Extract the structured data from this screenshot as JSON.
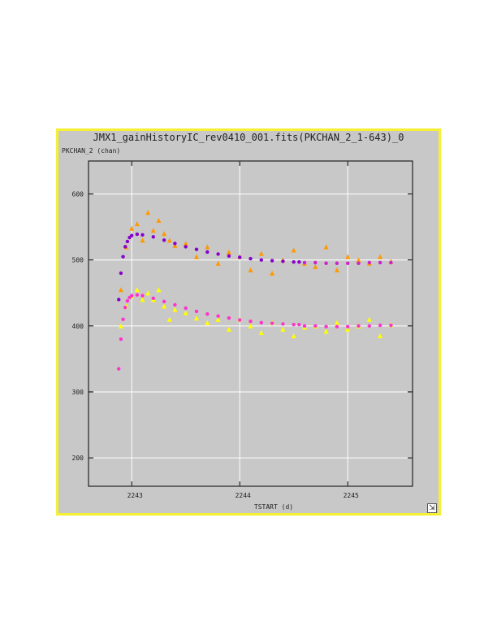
{
  "chart_data": {
    "type": "scatter",
    "title": "JMX1_gainHistoryIC_rev0410_001.fits(PKCHAN_2_1-643)_0",
    "xlabel": "TSTART (d)",
    "ylabel": "PKCHAN_2 (chan)",
    "xlim": [
      2242.6,
      2245.6
    ],
    "ylim": [
      157,
      650
    ],
    "x_ticks": [
      2243,
      2244,
      2245
    ],
    "x_tick_labels": [
      "2243",
      "2244",
      "2245"
    ],
    "y_ticks": [
      200,
      300,
      400,
      500,
      600
    ],
    "y_tick_labels": [
      "200",
      "300",
      "400",
      "500",
      "600"
    ],
    "grid": true,
    "legend": "none",
    "series": [
      {
        "color": "#ff9900",
        "marker": "triangle",
        "x": [
          2242.9,
          2242.95,
          2243.0,
          2243.05,
          2243.1,
          2243.15,
          2243.2,
          2243.25,
          2243.3,
          2243.35,
          2243.4,
          2243.5,
          2243.6,
          2243.7,
          2243.8,
          2243.9,
          2244.0,
          2244.1,
          2244.2,
          2244.3,
          2244.4,
          2244.5,
          2244.6,
          2244.7,
          2244.8,
          2244.9,
          2245.0,
          2245.1,
          2245.2,
          2245.3,
          2245.4
        ],
        "y": [
          455,
          520,
          548,
          555,
          530,
          572,
          545,
          560,
          540,
          530,
          522,
          525,
          505,
          520,
          495,
          512,
          505,
          485,
          510,
          480,
          500,
          515,
          495,
          490,
          520,
          485,
          505,
          500,
          495,
          505,
          498
        ]
      },
      {
        "color": "#ffff00",
        "marker": "triangle",
        "x": [
          2242.9,
          2242.95,
          2243.0,
          2243.05,
          2243.1,
          2243.15,
          2243.2,
          2243.25,
          2243.3,
          2243.35,
          2243.4,
          2243.5,
          2243.6,
          2243.7,
          2243.8,
          2243.9,
          2244.0,
          2244.1,
          2244.2,
          2244.3,
          2244.4,
          2244.5,
          2244.6,
          2244.7,
          2244.8,
          2244.9,
          2245.0,
          2245.1,
          2245.2,
          2245.3,
          2245.4
        ],
        "y": [
          400,
          430,
          445,
          455,
          440,
          450,
          440,
          455,
          430,
          410,
          425,
          420,
          412,
          405,
          410,
          395,
          410,
          400,
          390,
          405,
          395,
          385,
          398,
          400,
          392,
          405,
          395,
          400,
          410,
          385,
          402
        ]
      },
      {
        "color": "#8800cc",
        "marker": "dot",
        "x": [
          2242.88,
          2242.9,
          2242.92,
          2242.94,
          2242.96,
          2242.98,
          2243.0,
          2243.05,
          2243.1,
          2243.2,
          2243.3,
          2243.4,
          2243.5,
          2243.6,
          2243.7,
          2243.8,
          2243.9,
          2244.0,
          2244.1,
          2244.2,
          2244.3,
          2244.4,
          2244.5,
          2244.55
        ],
        "y": [
          440,
          480,
          505,
          520,
          528,
          534,
          537,
          539,
          538,
          535,
          530,
          525,
          520,
          516,
          512,
          509,
          506,
          504,
          502,
          500,
          499,
          498,
          497,
          497
        ]
      },
      {
        "color": "#ff33cc",
        "marker": "dot",
        "x": [
          2242.88,
          2242.9,
          2242.92,
          2242.94,
          2242.96,
          2242.98,
          2243.0,
          2243.05,
          2243.1,
          2243.2,
          2243.3,
          2243.4,
          2243.5,
          2243.6,
          2243.7,
          2243.8,
          2243.9,
          2244.0,
          2244.1,
          2244.2,
          2244.3,
          2244.4,
          2244.5,
          2244.55
        ],
        "y": [
          335,
          380,
          410,
          428,
          438,
          443,
          446,
          447,
          446,
          442,
          437,
          432,
          427,
          422,
          418,
          415,
          412,
          409,
          407,
          405,
          404,
          403,
          402,
          402
        ]
      },
      {
        "color": "#ff33cc",
        "marker": "dot",
        "x": [
          2244.6,
          2244.7,
          2244.8,
          2244.9,
          2245.0,
          2245.1,
          2245.2,
          2245.3,
          2245.4
        ],
        "y": [
          400,
          400,
          399,
          399,
          399,
          400,
          400,
          401,
          401
        ]
      },
      {
        "color": "#cc22cc",
        "marker": "dot",
        "x": [
          2244.6,
          2244.7,
          2244.8,
          2244.9,
          2245.0,
          2245.1,
          2245.2,
          2245.3,
          2245.4
        ],
        "y": [
          496,
          496,
          495,
          495,
          495,
          495,
          496,
          496,
          496
        ]
      }
    ]
  },
  "ui": {
    "title": "JMX1_gainHistoryIC_rev0410_001.fits(PKCHAN_2_1-643)_0",
    "ylabel": "PKCHAN_2 (chan)",
    "xlabel": "TSTART (d)",
    "resize_glyph": "⇲"
  }
}
